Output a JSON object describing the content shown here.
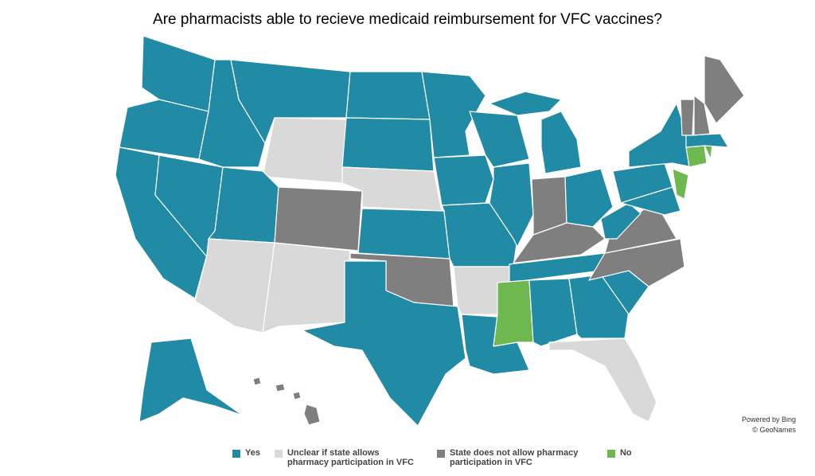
{
  "title": "Are pharmacists able to recieve medicaid reimbursement  for VFC vaccines?",
  "legend": [
    {
      "label": "Yes",
      "color": "#218ba5"
    },
    {
      "label": "Unclear if state allows pharmacy participation in VFC",
      "color": "#d9d9d9"
    },
    {
      "label": "State does not allow pharmacy participation in VFC",
      "color": "#7f7f7f"
    },
    {
      "label": "No",
      "color": "#6fb84f"
    }
  ],
  "attribution": [
    "Powered by Bing",
    "© GeoNames"
  ]
}
